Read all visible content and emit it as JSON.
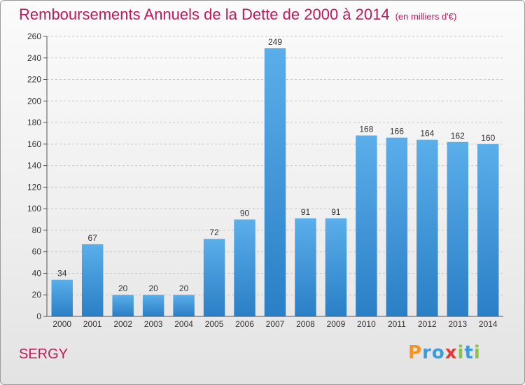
{
  "title": "Remboursements Annuels de la Dette de 2000 à 2014",
  "unit": "(en milliers d'€)",
  "commune": "SERGY",
  "logo": {
    "text": "Proxiti",
    "letters": [
      {
        "ch": "P",
        "color": "#f7941d"
      },
      {
        "ch": "r",
        "color": "#3a9be0"
      },
      {
        "ch": "o",
        "color": "#3a9be0"
      },
      {
        "ch": "x",
        "color": "#e53935"
      },
      {
        "ch": "i",
        "color": "#8bc34a"
      },
      {
        "ch": "t",
        "color": "#3a9be0"
      },
      {
        "ch": "i",
        "color": "#8bc34a"
      }
    ]
  },
  "colors": {
    "bar_top": "#5aaeea",
    "bar_bottom": "#2a7fc6",
    "accent": "#c2185b"
  },
  "chart_data": {
    "type": "bar",
    "categories": [
      "2000",
      "2001",
      "2002",
      "2003",
      "2004",
      "2005",
      "2006",
      "2007",
      "2008",
      "2009",
      "2010",
      "2011",
      "2012",
      "2013",
      "2014"
    ],
    "values": [
      34,
      67,
      20,
      20,
      20,
      72,
      90,
      249,
      91,
      91,
      168,
      166,
      164,
      162,
      160
    ],
    "ylim": [
      0,
      260
    ],
    "yticks": [
      0,
      20,
      40,
      60,
      80,
      100,
      120,
      140,
      160,
      180,
      200,
      220,
      240,
      260
    ],
    "grid": true,
    "data_labels": true
  }
}
